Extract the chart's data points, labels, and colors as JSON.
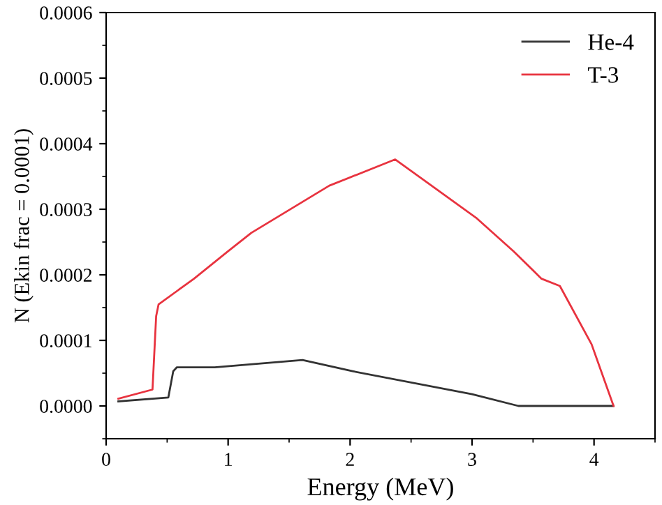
{
  "chart_data": {
    "type": "line",
    "xlabel": "Energy (MeV)",
    "ylabel": "N (Ekin frac = 0.0001)",
    "xlim": [
      0,
      4.5
    ],
    "xticks": [
      0,
      1,
      2,
      3,
      4
    ],
    "ylim": [
      -5e-05,
      0.0006
    ],
    "yticks": [
      {
        "value": 0,
        "label": "0.0000"
      },
      {
        "value": 0.0001,
        "label": "0.0001"
      },
      {
        "value": 0.0002,
        "label": "0.0002"
      },
      {
        "value": 0.0003,
        "label": "0.0003"
      },
      {
        "value": 0.0004,
        "label": "0.0004"
      },
      {
        "value": 0.0005,
        "label": "0.0005"
      },
      {
        "value": 0.0006,
        "label": "0.0006"
      }
    ],
    "legend": "top right",
    "grid": false,
    "marker": "none",
    "line_style": "solid",
    "series": [
      {
        "name": "He-4",
        "color": "#333333",
        "x": [
          0.1,
          0.51,
          0.55,
          0.58,
          0.89,
          1.61,
          2.02,
          3.0,
          3.38,
          4.16
        ],
        "values": [
          7e-06,
          1.3e-05,
          5.3e-05,
          5.9e-05,
          5.9e-05,
          7e-05,
          5.3e-05,
          1.8e-05,
          0,
          0
        ]
      },
      {
        "name": "T-3",
        "color": "#e8333f",
        "x": [
          0.1,
          0.38,
          0.41,
          0.43,
          0.72,
          1.0,
          1.19,
          1.83,
          2.37,
          3.04,
          3.34,
          3.57,
          3.72,
          3.98,
          4.16
        ],
        "values": [
          1.1e-05,
          2.5e-05,
          0.000137,
          0.000155,
          0.000194,
          0.000236,
          0.000264,
          0.000336,
          0.000376,
          0.000286,
          0.000236,
          0.000194,
          0.000183,
          9.4e-05,
          0
        ]
      }
    ]
  }
}
